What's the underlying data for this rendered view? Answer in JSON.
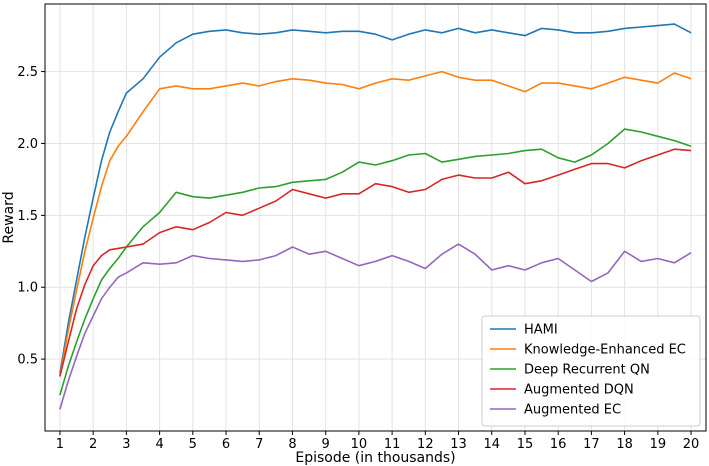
{
  "chart_data": {
    "type": "line",
    "xlabel": "Episode (in thousands)",
    "ylabel": "Reward",
    "xlim": [
      0.55,
      20.45
    ],
    "ylim": [
      0.0,
      2.97
    ],
    "x_ticks": [
      1,
      2,
      3,
      4,
      5,
      6,
      7,
      8,
      9,
      10,
      11,
      12,
      13,
      14,
      15,
      16,
      17,
      18,
      19,
      20
    ],
    "x_tick_labels": [
      "1",
      "2",
      "3",
      "4",
      "5",
      "6",
      "7",
      "8",
      "9",
      "10",
      "11",
      "12",
      "13",
      "14",
      "15",
      "16",
      "17",
      "18",
      "19",
      "20"
    ],
    "y_ticks": [
      0.5,
      1.0,
      1.5,
      2.0,
      2.5
    ],
    "y_tick_labels": [
      "0.5",
      "1.0",
      "1.5",
      "2.0",
      "2.5"
    ],
    "grid": true,
    "legend_position": "bottom-right",
    "series": [
      {
        "name": "HAMI",
        "color": "#1f77b4",
        "x": [
          1,
          1.25,
          1.5,
          1.75,
          2,
          2.25,
          2.5,
          2.75,
          3,
          3.5,
          4,
          4.5,
          5,
          5.5,
          6,
          6.5,
          7,
          7.5,
          8,
          8.5,
          9,
          9.5,
          10,
          10.5,
          11,
          11.5,
          12,
          12.5,
          13,
          13.5,
          14,
          14.5,
          15,
          15.5,
          16,
          16.5,
          17,
          17.5,
          18,
          18.5,
          19,
          19.5,
          20
        ],
        "y": [
          0.4,
          0.75,
          1.05,
          1.35,
          1.62,
          1.88,
          2.08,
          2.22,
          2.35,
          2.45,
          2.6,
          2.7,
          2.76,
          2.78,
          2.79,
          2.77,
          2.76,
          2.77,
          2.79,
          2.78,
          2.77,
          2.78,
          2.78,
          2.76,
          2.72,
          2.76,
          2.79,
          2.77,
          2.8,
          2.77,
          2.79,
          2.77,
          2.75,
          2.8,
          2.79,
          2.77,
          2.77,
          2.78,
          2.8,
          2.81,
          2.82,
          2.83,
          2.77
        ]
      },
      {
        "name": "Knowledge-Enhanced EC",
        "color": "#ff7f0e",
        "x": [
          1,
          1.25,
          1.5,
          1.75,
          2,
          2.25,
          2.5,
          2.75,
          3,
          3.5,
          4,
          4.5,
          5,
          5.5,
          6,
          6.5,
          7,
          7.5,
          8,
          8.5,
          9,
          9.5,
          10,
          10.5,
          11,
          11.5,
          12,
          12.5,
          13,
          13.5,
          14,
          14.5,
          15,
          15.5,
          16,
          16.5,
          17,
          17.5,
          18,
          18.5,
          19,
          19.5,
          20
        ],
        "y": [
          0.38,
          0.7,
          0.98,
          1.25,
          1.48,
          1.7,
          1.88,
          1.98,
          2.05,
          2.22,
          2.38,
          2.4,
          2.38,
          2.38,
          2.4,
          2.42,
          2.4,
          2.43,
          2.45,
          2.44,
          2.42,
          2.41,
          2.38,
          2.42,
          2.45,
          2.44,
          2.47,
          2.5,
          2.46,
          2.44,
          2.44,
          2.4,
          2.36,
          2.42,
          2.42,
          2.4,
          2.38,
          2.42,
          2.46,
          2.44,
          2.42,
          2.49,
          2.45
        ]
      },
      {
        "name": "Deep Recurrent QN",
        "color": "#2ca02c",
        "x": [
          1,
          1.25,
          1.5,
          1.75,
          2,
          2.25,
          2.5,
          2.75,
          3,
          3.5,
          4,
          4.5,
          5,
          5.5,
          6,
          6.5,
          7,
          7.5,
          8,
          8.5,
          9,
          9.5,
          10,
          10.5,
          11,
          11.5,
          12,
          12.5,
          13,
          13.5,
          14,
          14.5,
          15,
          15.5,
          16,
          16.5,
          17,
          17.5,
          18,
          18.5,
          19,
          19.5,
          20
        ],
        "y": [
          0.25,
          0.45,
          0.62,
          0.78,
          0.92,
          1.05,
          1.13,
          1.2,
          1.28,
          1.42,
          1.52,
          1.66,
          1.63,
          1.62,
          1.64,
          1.66,
          1.69,
          1.7,
          1.73,
          1.74,
          1.75,
          1.8,
          1.87,
          1.85,
          1.88,
          1.92,
          1.93,
          1.87,
          1.89,
          1.91,
          1.92,
          1.93,
          1.95,
          1.96,
          1.9,
          1.87,
          1.92,
          2.0,
          2.1,
          2.08,
          2.05,
          2.02,
          1.98
        ]
      },
      {
        "name": "Augmented DQN",
        "color": "#d62728",
        "x": [
          1,
          1.25,
          1.5,
          1.75,
          2,
          2.25,
          2.5,
          2.75,
          3,
          3.5,
          4,
          4.5,
          5,
          5.5,
          6,
          6.5,
          7,
          7.5,
          8,
          8.5,
          9,
          9.5,
          10,
          10.5,
          11,
          11.5,
          12,
          12.5,
          13,
          13.5,
          14,
          14.5,
          15,
          15.5,
          16,
          16.5,
          17,
          17.5,
          18,
          18.5,
          19,
          19.5,
          20
        ],
        "y": [
          0.38,
          0.62,
          0.85,
          1.02,
          1.15,
          1.22,
          1.26,
          1.27,
          1.28,
          1.3,
          1.38,
          1.42,
          1.4,
          1.45,
          1.52,
          1.5,
          1.55,
          1.6,
          1.68,
          1.65,
          1.62,
          1.65,
          1.65,
          1.72,
          1.7,
          1.66,
          1.68,
          1.75,
          1.78,
          1.76,
          1.76,
          1.8,
          1.72,
          1.74,
          1.78,
          1.82,
          1.86,
          1.86,
          1.83,
          1.88,
          1.92,
          1.96,
          1.95
        ]
      },
      {
        "name": "Augmented EC",
        "color": "#9467bd",
        "x": [
          1,
          1.25,
          1.5,
          1.75,
          2,
          2.25,
          2.5,
          2.75,
          3,
          3.5,
          4,
          4.5,
          5,
          5.5,
          6,
          6.5,
          7,
          7.5,
          8,
          8.5,
          9,
          9.5,
          10,
          10.5,
          11,
          11.5,
          12,
          12.5,
          13,
          13.5,
          14,
          14.5,
          15,
          15.5,
          16,
          16.5,
          17,
          17.5,
          18,
          18.5,
          19,
          19.5,
          20
        ],
        "y": [
          0.15,
          0.35,
          0.52,
          0.68,
          0.8,
          0.92,
          1.0,
          1.07,
          1.1,
          1.17,
          1.16,
          1.17,
          1.22,
          1.2,
          1.19,
          1.18,
          1.19,
          1.22,
          1.28,
          1.23,
          1.25,
          1.2,
          1.15,
          1.18,
          1.22,
          1.18,
          1.13,
          1.23,
          1.3,
          1.23,
          1.12,
          1.15,
          1.12,
          1.17,
          1.2,
          1.12,
          1.04,
          1.1,
          1.25,
          1.18,
          1.2,
          1.17,
          1.24
        ]
      }
    ]
  }
}
